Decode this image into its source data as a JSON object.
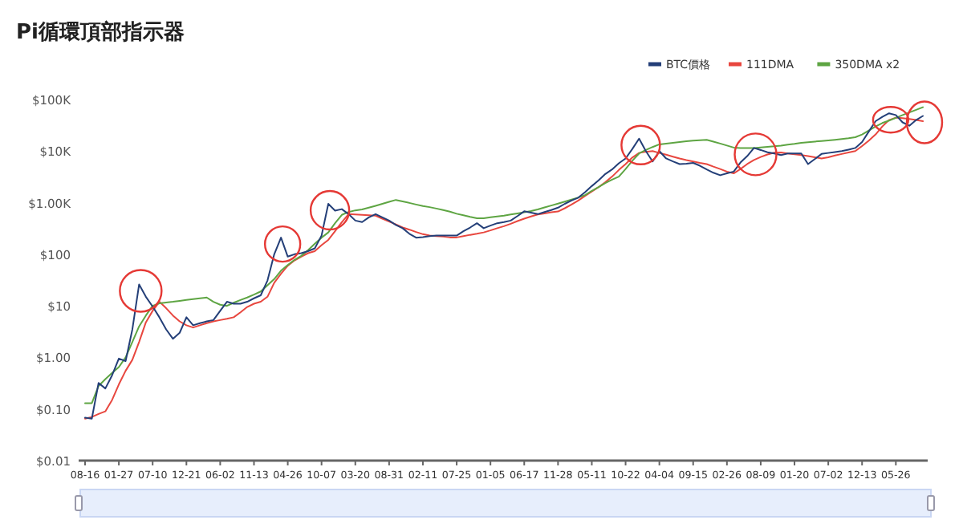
{
  "chart_data": {
    "type": "line",
    "title": "Pi循環頂部指示器",
    "legend": "top right",
    "log": "y",
    "categories": [
      "08-16",
      null,
      null,
      null,
      null,
      "01-27",
      null,
      null,
      null,
      null,
      "07-10",
      null,
      null,
      null,
      null,
      "12-21",
      null,
      null,
      null,
      null,
      "06-02",
      null,
      null,
      null,
      null,
      "11-13",
      null,
      null,
      null,
      null,
      "04-26",
      null,
      null,
      null,
      null,
      "10-07",
      null,
      null,
      null,
      null,
      "03-20",
      null,
      null,
      null,
      null,
      "08-31",
      null,
      null,
      null,
      null,
      "02-11",
      null,
      null,
      null,
      null,
      "07-25",
      null,
      null,
      null,
      null,
      "01-05",
      null,
      null,
      null,
      null,
      "06-17",
      null,
      null,
      null,
      null,
      "11-28",
      null,
      null,
      null,
      null,
      "05-11",
      null,
      null,
      null,
      null,
      "10-22",
      null,
      null,
      null,
      null,
      "04-04",
      null,
      null,
      null,
      null,
      "09-15",
      null,
      null,
      null,
      null,
      "02-26",
      null,
      null,
      null,
      null,
      "08-09",
      null,
      null,
      null,
      null,
      "01-20",
      null,
      null,
      null,
      null,
      "07-02",
      null,
      null,
      null,
      null,
      "12-13",
      null,
      null,
      null,
      null,
      "05-26",
      null,
      null,
      null,
      null
    ],
    "ylim": [
      0.01,
      100000
    ],
    "yticks": [
      {
        "value": 0.01,
        "label": "$0.01"
      },
      {
        "value": 0.1,
        "label": "$0.10"
      },
      {
        "value": 1,
        "label": "$1.00"
      },
      {
        "value": 10,
        "label": "$10"
      },
      {
        "value": 100,
        "label": "$100"
      },
      {
        "value": 1000,
        "label": "$1.00K"
      },
      {
        "value": 10000,
        "label": "$10K"
      },
      {
        "value": 100000,
        "label": "$100K"
      }
    ],
    "series": [
      {
        "name": "BTC價格",
        "color": "#243f78",
        "values": [
          0.068,
          0.065,
          0.32,
          0.25,
          0.45,
          0.95,
          0.85,
          3.5,
          26,
          15,
          9.7,
          6,
          3.5,
          2.3,
          3,
          6,
          4.2,
          4.6,
          5,
          5.3,
          8,
          12,
          11,
          11,
          12,
          14,
          16,
          31,
          100,
          210,
          90,
          100,
          105,
          115,
          130,
          230,
          950,
          700,
          750,
          600,
          450,
          420,
          520,
          600,
          520,
          450,
          370,
          320,
          250,
          210,
          215,
          225,
          230,
          230,
          230,
          230,
          280,
          330,
          400,
          320,
          360,
          400,
          420,
          450,
          550,
          680,
          640,
          600,
          660,
          720,
          800,
          950,
          1100,
          1250,
          1600,
          2100,
          2700,
          3600,
          4400,
          5800,
          7200,
          11000,
          17400,
          10000,
          6300,
          10000,
          7200,
          6300,
          5600,
          5700,
          5900,
          5200,
          4400,
          3800,
          3400,
          3700,
          4000,
          6000,
          8000,
          11500,
          10500,
          9500,
          9000,
          8400,
          9000,
          9000,
          9000,
          5600,
          7000,
          8800,
          9200,
          9600,
          10000,
          10700,
          11500,
          15000,
          24000,
          38000,
          46000,
          54000,
          50000,
          36000,
          31000,
          40000,
          48000
        ]
      },
      {
        "name": "111DMA",
        "color": "#e8473f",
        "values": [
          0.065,
          0.07,
          0.08,
          0.09,
          0.15,
          0.3,
          0.55,
          0.9,
          2,
          4.8,
          8,
          12,
          9,
          6.5,
          5,
          4.2,
          3.8,
          4.2,
          4.6,
          5,
          5.3,
          5.6,
          6,
          7.5,
          9.5,
          11,
          12,
          15,
          28,
          42,
          60,
          76,
          90,
          105,
          115,
          150,
          190,
          280,
          420,
          600,
          590,
          580,
          570,
          560,
          490,
          430,
          380,
          330,
          300,
          270,
          245,
          230,
          225,
          220,
          212,
          212,
          225,
          238,
          250,
          265,
          290,
          320,
          350,
          390,
          440,
          490,
          540,
          590,
          620,
          650,
          675,
          780,
          920,
          1100,
          1350,
          1650,
          2000,
          2500,
          3200,
          4300,
          5600,
          7500,
          9200,
          9700,
          10000,
          9200,
          8500,
          7800,
          7200,
          6700,
          6300,
          5900,
          5600,
          5000,
          4500,
          4000,
          3700,
          4500,
          5600,
          6700,
          7700,
          8600,
          9300,
          9400,
          9000,
          8700,
          8400,
          8000,
          7600,
          7200,
          7600,
          8200,
          8800,
          9400,
          10000,
          12500,
          16000,
          21000,
          30000,
          40000,
          44500,
          43500,
          42000,
          40000,
          38000
        ]
      },
      {
        "name": "350DMA x2",
        "color": "#5ea543",
        "values": [
          0.13,
          0.13,
          0.28,
          0.38,
          0.5,
          0.65,
          1.0,
          2,
          4,
          6.5,
          10,
          11.2,
          11.6,
          12,
          12.5,
          13,
          13.5,
          14,
          14.5,
          12,
          10.5,
          10,
          11.5,
          13,
          14.5,
          16.5,
          19,
          25,
          33,
          48,
          62,
          78,
          93,
          120,
          160,
          210,
          265,
          400,
          580,
          660,
          710,
          740,
          800,
          870,
          950,
          1040,
          1130,
          1060,
          990,
          920,
          860,
          820,
          770,
          720,
          670,
          610,
          570,
          530,
          500,
          500,
          520,
          540,
          560,
          590,
          620,
          650,
          690,
          740,
          810,
          880,
          960,
          1050,
          1150,
          1260,
          1400,
          1700,
          2000,
          2400,
          2800,
          3200,
          4500,
          6500,
          9000,
          10500,
          12000,
          13500,
          14000,
          14500,
          15000,
          15500,
          16000,
          16300,
          16500,
          15300,
          14000,
          12800,
          11700,
          11500,
          11500,
          11500,
          11800,
          12100,
          12400,
          12800,
          13300,
          13800,
          14500,
          14900,
          15300,
          15700,
          16100,
          16600,
          17100,
          17700,
          18600,
          21000,
          25000,
          30000,
          35000,
          39000,
          44000,
          50000,
          56000,
          63000,
          71000
        ]
      }
    ]
  }
}
